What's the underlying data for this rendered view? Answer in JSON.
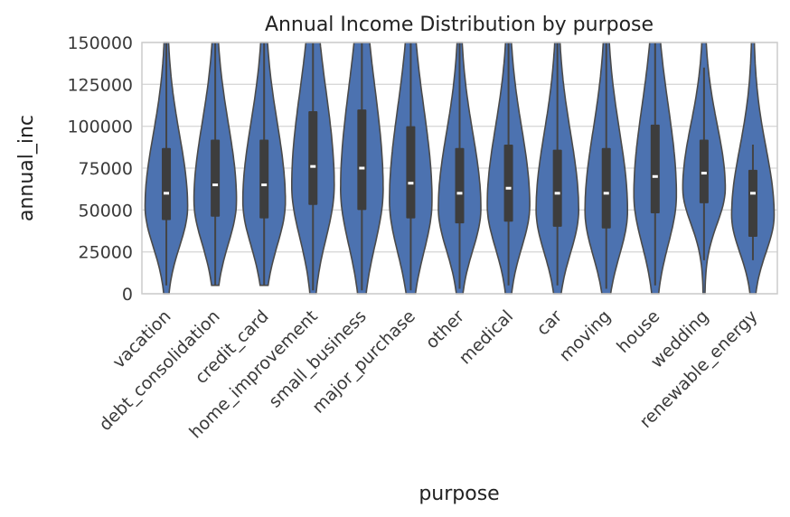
{
  "chart_data": {
    "type": "violin",
    "title": "Annual Income Distribution by purpose",
    "xlabel": "purpose",
    "ylabel": "annual_inc",
    "ylim": [
      0,
      150000
    ],
    "yticks": [
      "0",
      "25000",
      "50000",
      "75000",
      "100000",
      "125000",
      "150000"
    ],
    "grid": true,
    "legend": "none",
    "violin_color": "#4c72b0",
    "outline_color": "#4a4a4a",
    "categories": [
      "vacation",
      "debt_consolidation",
      "credit_card",
      "home_improvement",
      "small_business",
      "major_purchase",
      "other",
      "medical",
      "car",
      "moving",
      "house",
      "wedding",
      "renewable_energy"
    ],
    "violins": [
      {
        "category": "vacation",
        "min": 0,
        "max": 150000,
        "q1": 44000,
        "median": 60000,
        "q3": 87000,
        "whisker_low": 5000,
        "whisker_high": 150000
      },
      {
        "category": "debt_consolidation",
        "min": 5000,
        "max": 150000,
        "q1": 46000,
        "median": 65000,
        "q3": 92000,
        "whisker_low": 5000,
        "whisker_high": 150000
      },
      {
        "category": "credit_card",
        "min": 5000,
        "max": 150000,
        "q1": 45000,
        "median": 65000,
        "q3": 92000,
        "whisker_low": 5000,
        "whisker_high": 150000
      },
      {
        "category": "home_improvement",
        "min": 0,
        "max": 150000,
        "q1": 53000,
        "median": 76000,
        "q3": 109000,
        "whisker_low": 2000,
        "whisker_high": 150000
      },
      {
        "category": "small_business",
        "min": 0,
        "max": 150000,
        "q1": 50000,
        "median": 75000,
        "q3": 110000,
        "whisker_low": 2000,
        "whisker_high": 150000
      },
      {
        "category": "major_purchase",
        "min": 0,
        "max": 150000,
        "q1": 45000,
        "median": 66000,
        "q3": 100000,
        "whisker_low": 2000,
        "whisker_high": 150000
      },
      {
        "category": "other",
        "min": 0,
        "max": 150000,
        "q1": 42000,
        "median": 60000,
        "q3": 87000,
        "whisker_low": 3000,
        "whisker_high": 150000
      },
      {
        "category": "medical",
        "min": 0,
        "max": 150000,
        "q1": 43000,
        "median": 63000,
        "q3": 89000,
        "whisker_low": 5000,
        "whisker_high": 150000
      },
      {
        "category": "car",
        "min": 0,
        "max": 150000,
        "q1": 40000,
        "median": 60000,
        "q3": 86000,
        "whisker_low": 5000,
        "whisker_high": 150000
      },
      {
        "category": "moving",
        "min": 0,
        "max": 150000,
        "q1": 39000,
        "median": 60000,
        "q3": 87000,
        "whisker_low": 3000,
        "whisker_high": 150000
      },
      {
        "category": "house",
        "min": 0,
        "max": 150000,
        "q1": 48000,
        "median": 70000,
        "q3": 101000,
        "whisker_low": 5000,
        "whisker_high": 150000
      },
      {
        "category": "wedding",
        "min": 0,
        "max": 150000,
        "q1": 54000,
        "median": 72000,
        "q3": 92000,
        "whisker_low": 20000,
        "whisker_high": 135000
      },
      {
        "category": "renewable_energy",
        "min": 0,
        "max": 150000,
        "q1": 34000,
        "median": 60000,
        "q3": 74000,
        "whisker_low": 20000,
        "whisker_high": 89000
      }
    ]
  }
}
